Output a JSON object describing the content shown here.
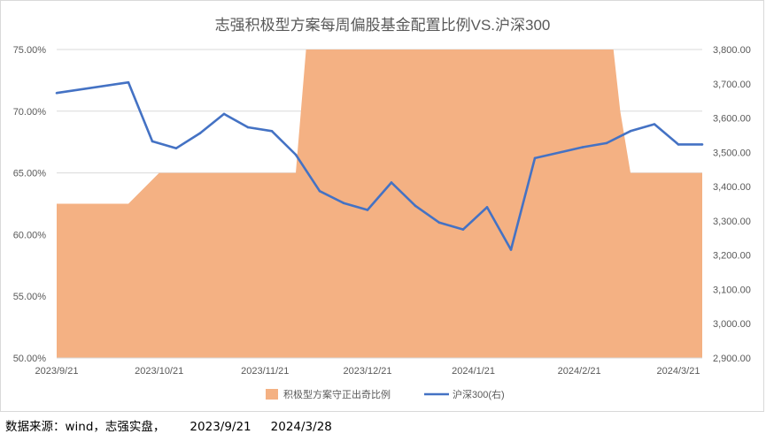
{
  "chart_data": {
    "type": "area+line",
    "title": "志强积极型方案每周偏股基金配置比例VS.沪深300",
    "x_ticks": [
      "2023/9/21",
      "2023/10/21",
      "2023/11/21",
      "2023/12/21",
      "2024/1/21",
      "2024/2/21",
      "2024/3/21"
    ],
    "y_left": {
      "min": 0.5,
      "max": 0.75,
      "ticks": [
        "50.00%",
        "55.00%",
        "60.00%",
        "65.00%",
        "70.00%",
        "75.00%"
      ]
    },
    "y_right": {
      "min": 2900,
      "max": 3800,
      "ticks": [
        "2,900.00",
        "3,000.00",
        "3,100.00",
        "3,200.00",
        "3,300.00",
        "3,400.00",
        "3,500.00",
        "3,600.00",
        "3,700.00",
        "3,800.00"
      ]
    },
    "x": [
      "2023-09-21",
      "2023-10-12",
      "2023-10-19",
      "2023-10-26",
      "2023-11-02",
      "2023-11-09",
      "2023-11-16",
      "2023-11-23",
      "2023-11-30",
      "2023-12-07",
      "2023-12-14",
      "2023-12-21",
      "2023-12-28",
      "2024-01-04",
      "2024-01-11",
      "2024-01-18",
      "2024-01-25",
      "2024-02-01",
      "2024-02-08",
      "2024-02-22",
      "2024-02-29",
      "2024-03-07",
      "2024-03-14",
      "2024-03-21",
      "2024-03-28"
    ],
    "series": [
      {
        "name": "积极型方案守正出奇比例",
        "kind": "area",
        "color": "#f4b183",
        "points": [
          [
            "2023-09-21",
            0.625
          ],
          [
            "2023-10-12",
            0.625
          ],
          [
            "2023-10-21",
            0.65
          ],
          [
            "2023-11-30",
            0.65
          ],
          [
            "2023-12-03",
            0.75
          ],
          [
            "2023-12-07",
            0.8
          ],
          [
            "2024-02-29",
            0.8
          ],
          [
            "2024-03-04",
            0.7
          ],
          [
            "2024-03-07",
            0.65
          ],
          [
            "2024-03-28",
            0.65
          ]
        ]
      },
      {
        "name": "沪深300(右)",
        "kind": "line",
        "axis": "right",
        "color": "#4472c4",
        "values": [
          3673,
          3704,
          3532,
          3512,
          3556,
          3612,
          3573,
          3562,
          3493,
          3387,
          3352,
          3332,
          3412,
          3344,
          3295,
          3275,
          3340,
          3216,
          3483,
          3515,
          3527,
          3562,
          3582,
          3523,
          3523
        ]
      }
    ],
    "legend": {
      "position": "bottom",
      "entries": [
        "积极型方案守正出奇比例",
        "沪深300(右)"
      ]
    },
    "grid": true
  },
  "footer": {
    "source": "数据来源：wind，志强实盘，",
    "start_date": "2023/9/21",
    "end_date": "2024/3/28"
  }
}
